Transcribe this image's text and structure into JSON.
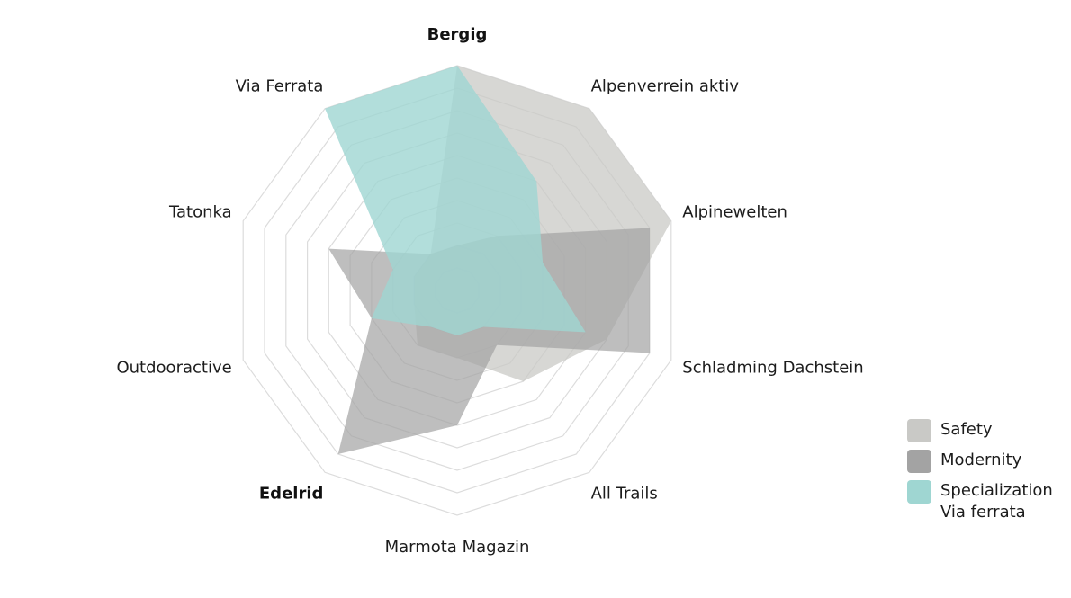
{
  "chart_data": {
    "type": "radar",
    "axes": [
      "Bergig",
      "Alpenverrein aktiv",
      "Alpinewelten",
      "Schladming Dachstein",
      "All Trails",
      "Marmota Magazin",
      "Edelrid",
      "Outdooractive",
      "Tatonka",
      "Via Ferrata"
    ],
    "bold_axes": [
      "Bergig",
      "Edelrid"
    ],
    "rlim": [
      0,
      10
    ],
    "rings": 10,
    "grid": true,
    "series": [
      {
        "name": "Safety",
        "color": "#c9c9c6",
        "opacity": 0.75,
        "values": [
          10,
          10,
          10,
          7,
          5,
          3,
          3,
          2,
          2,
          2
        ]
      },
      {
        "name": "Modernity",
        "color": "#a3a3a3",
        "opacity": 0.7,
        "values": [
          2,
          3,
          9,
          9,
          3,
          6,
          9,
          4,
          6,
          2
        ]
      },
      {
        "name": "Specialization\nVia ferrata",
        "color": "#9fd6d2",
        "opacity": 0.8,
        "values": [
          10,
          6,
          4,
          6,
          2,
          2,
          2,
          4,
          3,
          10
        ]
      }
    ],
    "legend_position": "right"
  }
}
